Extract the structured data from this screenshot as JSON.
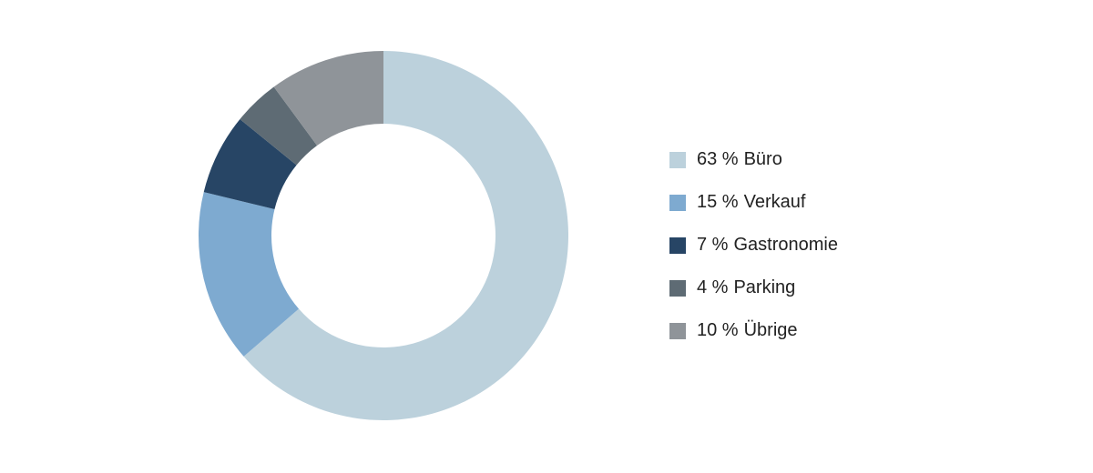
{
  "chart_data": {
    "type": "donut",
    "categories": [
      "Büro",
      "Verkauf",
      "Gastronomie",
      "Parking",
      "Übrige"
    ],
    "values": [
      63,
      15,
      7,
      4,
      10
    ],
    "value_labels": [
      "63 %",
      "15 %",
      "7 %",
      "4 %",
      "10 %"
    ],
    "colors": [
      "#bcd1dc",
      "#7eaad0",
      "#274565",
      "#5e6b74",
      "#8f9499"
    ],
    "legend": "right"
  }
}
